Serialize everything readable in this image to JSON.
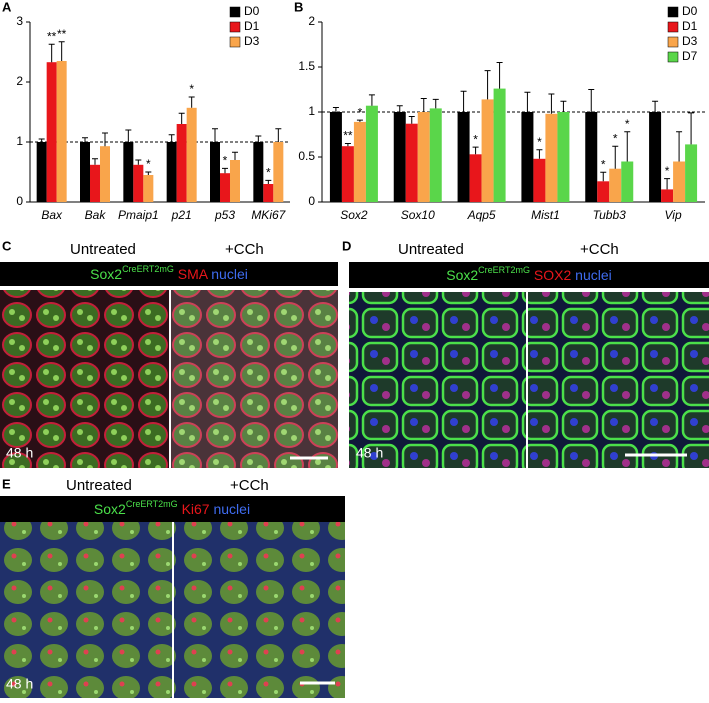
{
  "chart_data": [
    {
      "type": "bar",
      "panel": "A",
      "categories": [
        "Bax",
        "Bak",
        "Pmaip1",
        "p21",
        "p53",
        "MKi67"
      ],
      "ylim": [
        0,
        3
      ],
      "yticks": [
        0,
        1,
        2,
        3
      ],
      "reference_line": 1,
      "legend": "top-right",
      "series": [
        {
          "name": "D0",
          "color": "#000000",
          "values": [
            1.0,
            1.0,
            1.0,
            1.0,
            1.0,
            1.0
          ],
          "errors": [
            0.05,
            0.07,
            0.2,
            0.12,
            0.22,
            0.1
          ],
          "significance": [
            null,
            null,
            null,
            null,
            null,
            null
          ]
        },
        {
          "name": "D1",
          "color": "#e8161b",
          "values": [
            2.33,
            0.62,
            0.62,
            1.3,
            0.48,
            0.3
          ],
          "errors": [
            0.3,
            0.1,
            0.08,
            0.18,
            0.08,
            0.06
          ],
          "significance": [
            "**",
            null,
            null,
            null,
            "*",
            "*"
          ]
        },
        {
          "name": "D3",
          "color": "#f9a54b",
          "values": [
            2.35,
            0.93,
            0.45,
            1.57,
            0.7,
            1.0
          ],
          "errors": [
            0.32,
            0.22,
            0.05,
            0.18,
            0.13,
            0.22
          ],
          "significance": [
            "**",
            null,
            "*",
            "*",
            null,
            null
          ]
        }
      ]
    },
    {
      "type": "bar",
      "panel": "B",
      "categories": [
        "Sox2",
        "Sox10",
        "Aqp5",
        "Mist1",
        "Tubb3",
        "Vip"
      ],
      "ylim": [
        0,
        2
      ],
      "yticks": [
        0,
        0.5,
        1,
        1.5,
        2
      ],
      "reference_line": 1,
      "legend": "top-right",
      "series": [
        {
          "name": "D0",
          "color": "#000000",
          "values": [
            1.0,
            1.0,
            1.0,
            1.0,
            1.0,
            1.0
          ],
          "errors": [
            0.05,
            0.07,
            0.23,
            0.22,
            0.25,
            0.12
          ],
          "significance": [
            null,
            null,
            null,
            null,
            null,
            null
          ]
        },
        {
          "name": "D1",
          "color": "#e8161b",
          "values": [
            0.62,
            0.87,
            0.53,
            0.48,
            0.23,
            0.14
          ],
          "errors": [
            0.03,
            0.08,
            0.08,
            0.1,
            0.1,
            0.12
          ],
          "significance": [
            "**",
            null,
            "*",
            "*",
            "*",
            "*"
          ]
        },
        {
          "name": "D3",
          "color": "#f9a54b",
          "values": [
            0.89,
            1.0,
            1.14,
            0.98,
            0.37,
            0.45
          ],
          "errors": [
            0.02,
            0.15,
            0.32,
            0.22,
            0.25,
            0.33
          ],
          "significance": [
            "*",
            null,
            null,
            null,
            "*",
            null
          ]
        },
        {
          "name": "D7",
          "color": "#5ad64a",
          "values": [
            1.07,
            1.04,
            1.26,
            1.0,
            0.45,
            0.64
          ],
          "errors": [
            0.12,
            0.1,
            0.29,
            0.12,
            0.33,
            0.35
          ],
          "significance": [
            null,
            null,
            null,
            null,
            "*",
            null
          ]
        }
      ]
    }
  ],
  "panels": [
    {
      "letter": "C",
      "left": "Untreated",
      "right": "+CCh",
      "marker": "Sox2",
      "sup": "CreERT2mG",
      "second": "SMA",
      "nuclei": "nuclei",
      "time": "48 h"
    },
    {
      "letter": "D",
      "left": "Untreated",
      "right": "+CCh",
      "marker": "Sox2",
      "sup": "CreERT2mG",
      "second": "SOX2",
      "nuclei": "nuclei",
      "time": "48 h"
    },
    {
      "letter": "E",
      "left": "Untreated",
      "right": "+CCh",
      "marker": "Sox2",
      "sup": "CreERT2mG",
      "second": "Ki67",
      "nuclei": "nuclei",
      "time": "48 h"
    }
  ]
}
